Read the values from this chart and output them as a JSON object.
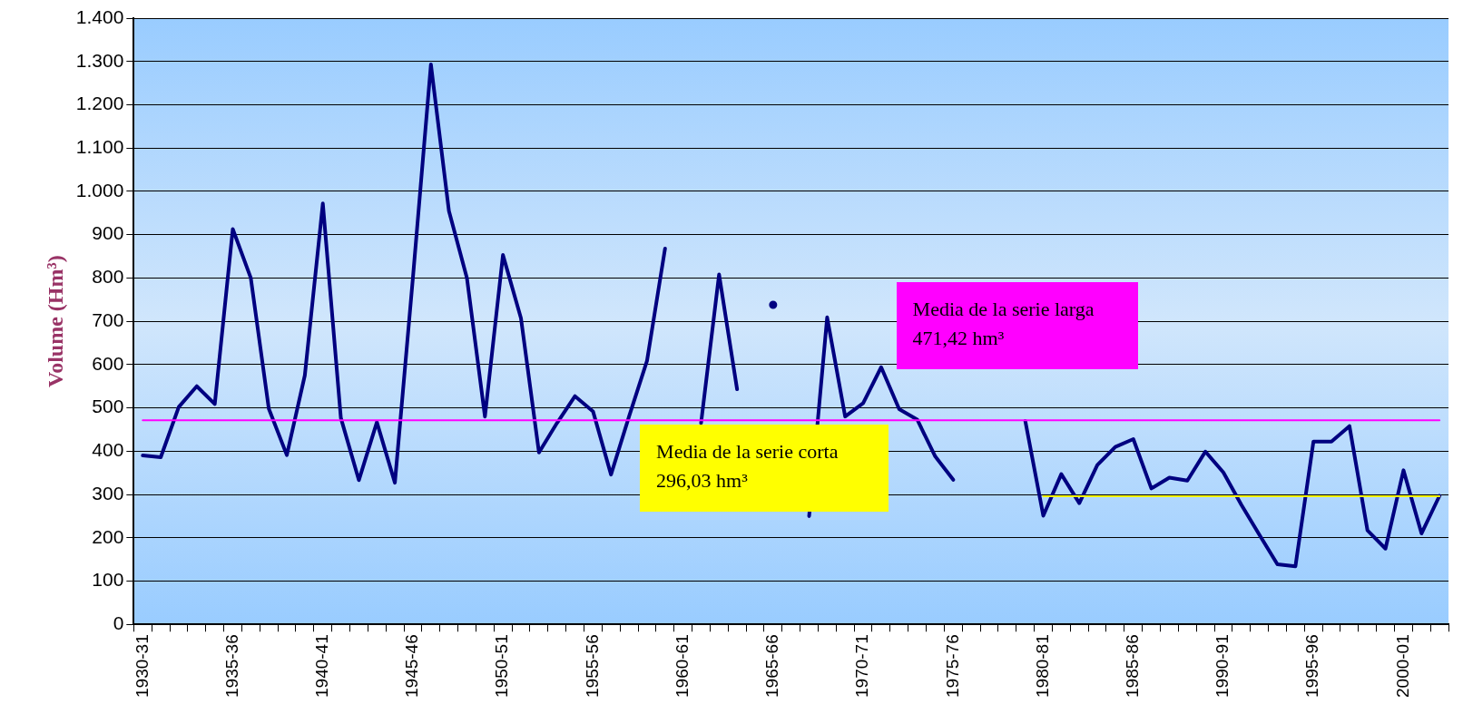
{
  "chart_data": {
    "type": "line",
    "ylabel": "Volume (Hm³)",
    "categories": [
      "1930-31",
      null,
      null,
      null,
      null,
      "1935-36",
      null,
      null,
      null,
      null,
      "1940-41",
      null,
      null,
      null,
      null,
      "1945-46",
      null,
      null,
      null,
      null,
      "1950-51",
      null,
      null,
      null,
      null,
      "1955-56",
      null,
      null,
      null,
      null,
      "1960-61",
      null,
      null,
      null,
      null,
      "1965-66",
      null,
      null,
      null,
      null,
      "1970-71",
      null,
      null,
      null,
      null,
      "1975-76",
      null,
      null,
      null,
      null,
      "1980-81",
      null,
      null,
      null,
      null,
      "1985-86",
      null,
      null,
      null,
      null,
      "1990-91",
      null,
      null,
      null,
      null,
      "1995-96",
      null,
      null,
      null,
      null,
      "2000-01",
      null,
      null
    ],
    "series": [
      {
        "color": "#000080",
        "values": [
          390,
          386,
          502,
          550,
          509,
          913,
          800,
          498,
          391,
          575,
          972,
          477,
          333,
          467,
          327,
          800,
          1293,
          955,
          800,
          480,
          853,
          707,
          397,
          465,
          527,
          492,
          346,
          480,
          609,
          868,
          null,
          465,
          808,
          543,
          null,
          738,
          null,
          250,
          709,
          480,
          511,
          594,
          497,
          473,
          388,
          334,
          null,
          null,
          null,
          470,
          251,
          347,
          280,
          368,
          410,
          428,
          314,
          339,
          332,
          399,
          351,
          276,
          207,
          139,
          134,
          422,
          422,
          458,
          217,
          175,
          356,
          210,
          297
        ]
      },
      {
        "color": "#ff00ff",
        "values": [
          471.42,
          471.42,
          471.42,
          471.42,
          471.42,
          471.42,
          471.42,
          471.42,
          471.42,
          471.42,
          471.42,
          471.42,
          471.42,
          471.42,
          471.42,
          471.42,
          471.42,
          471.42,
          471.42,
          471.42,
          471.42,
          471.42,
          471.42,
          471.42,
          471.42,
          471.42,
          471.42,
          471.42,
          471.42,
          471.42,
          471.42,
          471.42,
          471.42,
          471.42,
          471.42,
          471.42,
          471.42,
          471.42,
          471.42,
          471.42,
          471.42,
          471.42,
          471.42,
          471.42,
          471.42,
          471.42,
          471.42,
          471.42,
          471.42,
          471.42,
          471.42,
          471.42,
          471.42,
          471.42,
          471.42,
          471.42,
          471.42,
          471.42,
          471.42,
          471.42,
          471.42,
          471.42,
          471.42,
          471.42,
          471.42,
          471.42,
          471.42,
          471.42,
          471.42,
          471.42,
          471.42,
          471.42,
          471.42
        ]
      },
      {
        "color": "#ffff00",
        "values": [
          null,
          null,
          null,
          null,
          null,
          null,
          null,
          null,
          null,
          null,
          null,
          null,
          null,
          null,
          null,
          null,
          null,
          null,
          null,
          null,
          null,
          null,
          null,
          null,
          null,
          null,
          null,
          null,
          null,
          null,
          null,
          null,
          null,
          null,
          null,
          null,
          null,
          null,
          null,
          null,
          null,
          null,
          null,
          null,
          null,
          null,
          null,
          null,
          null,
          null,
          296.03,
          296.03,
          296.03,
          296.03,
          296.03,
          296.03,
          296.03,
          296.03,
          296.03,
          296.03,
          296.03,
          296.03,
          296.03,
          296.03,
          296.03,
          296.03,
          296.03,
          296.03,
          296.03,
          296.03,
          296.03,
          296.03,
          296.03
        ]
      }
    ],
    "annotations": [
      "Media de la serie larga 471,42 hm³",
      "Media de la serie corta 296,03 hm³"
    ],
    "ylim": [
      0,
      1400
    ],
    "yticks": [
      0,
      100,
      200,
      300,
      400,
      500,
      600,
      700,
      800,
      900,
      {
        "value": 1000,
        "label": "1.000"
      },
      {
        "value": 1100,
        "label": "1.100"
      },
      {
        "value": 1200,
        "label": "1.200"
      },
      {
        "value": 1300,
        "label": "1.300"
      },
      {
        "value": 1400,
        "label": "1.400"
      }
    ],
    "grid": "y",
    "legend": false,
    "marker": "none",
    "line_style": "solid"
  }
}
